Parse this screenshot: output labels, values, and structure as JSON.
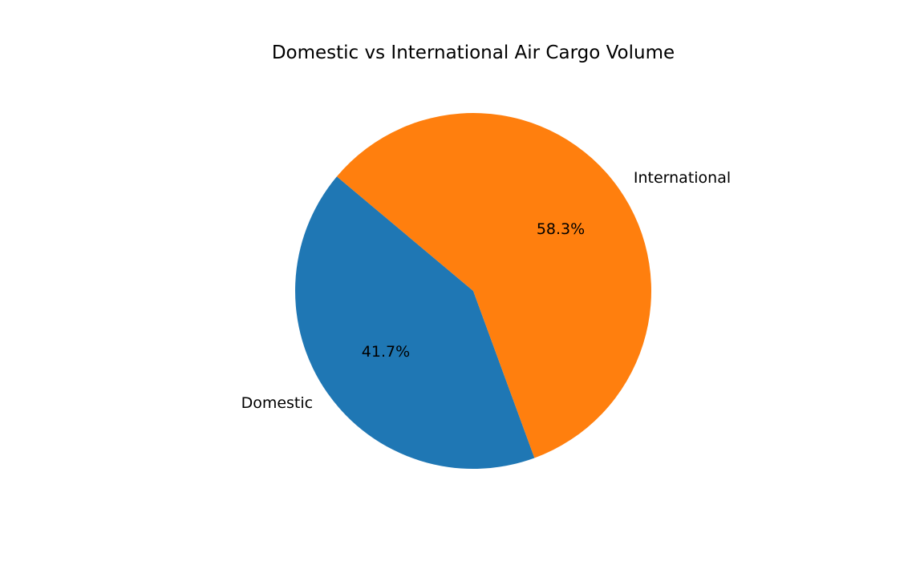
{
  "chart_data": {
    "type": "pie",
    "title": "Domestic vs International Air Cargo Volume",
    "categories": [
      "Domestic",
      "International"
    ],
    "values": [
      41.7,
      58.3
    ],
    "percent_labels": [
      "41.7%",
      "58.3%"
    ],
    "colors": [
      "#1f77b4",
      "#ff7f0e"
    ],
    "legend": false
  }
}
